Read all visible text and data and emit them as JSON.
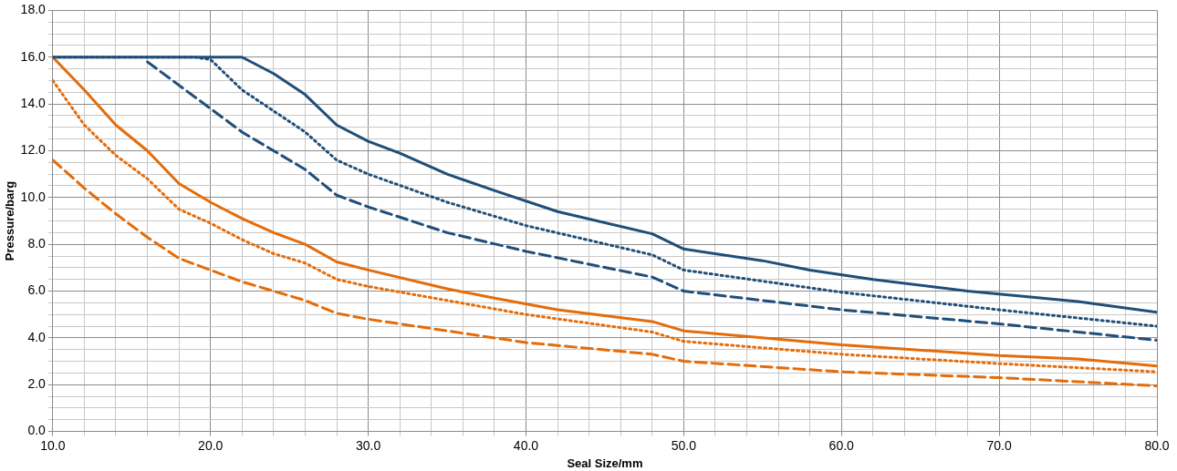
{
  "chart_data": {
    "type": "line",
    "xlabel": "Seal Size/mm",
    "ylabel": "Pressure/barg",
    "xlim": [
      10,
      80
    ],
    "ylim": [
      0,
      18
    ],
    "xticks": [
      {
        "value": 10,
        "label": "10.0"
      },
      {
        "value": 12,
        "label": null
      },
      {
        "value": 14,
        "label": null
      },
      {
        "value": 16,
        "label": null
      },
      {
        "value": 18,
        "label": null
      },
      {
        "value": 20,
        "label": "20.0"
      },
      {
        "value": 22,
        "label": null
      },
      {
        "value": 24,
        "label": null
      },
      {
        "value": 26,
        "label": null
      },
      {
        "value": 28,
        "label": null
      },
      {
        "value": 30,
        "label": "30.0"
      },
      {
        "value": 32,
        "label": null
      },
      {
        "value": 34,
        "label": null
      },
      {
        "value": 36,
        "label": null
      },
      {
        "value": 38,
        "label": null
      },
      {
        "value": 40,
        "label": "40.0"
      },
      {
        "value": 42,
        "label": null
      },
      {
        "value": 44,
        "label": null
      },
      {
        "value": 46,
        "label": null
      },
      {
        "value": 48,
        "label": null
      },
      {
        "value": 50,
        "label": "50.0"
      },
      {
        "value": 52,
        "label": null
      },
      {
        "value": 54,
        "label": null
      },
      {
        "value": 56,
        "label": null
      },
      {
        "value": 58,
        "label": null
      },
      {
        "value": 60,
        "label": "60.0"
      },
      {
        "value": 62,
        "label": null
      },
      {
        "value": 64,
        "label": null
      },
      {
        "value": 66,
        "label": null
      },
      {
        "value": 68,
        "label": null
      },
      {
        "value": 70,
        "label": "70.0"
      },
      {
        "value": 72,
        "label": null
      },
      {
        "value": 74,
        "label": null
      },
      {
        "value": 76,
        "label": null
      },
      {
        "value": 78,
        "label": null
      },
      {
        "value": 80,
        "label": "80.0"
      }
    ],
    "yticks": [
      {
        "value": 0,
        "label": "0.0"
      },
      {
        "value": 0.5,
        "label": null
      },
      {
        "value": 1,
        "label": null
      },
      {
        "value": 1.5,
        "label": null
      },
      {
        "value": 2,
        "label": "2.0"
      },
      {
        "value": 2.5,
        "label": null
      },
      {
        "value": 3,
        "label": null
      },
      {
        "value": 3.5,
        "label": null
      },
      {
        "value": 4,
        "label": "4.0"
      },
      {
        "value": 4.5,
        "label": null
      },
      {
        "value": 5,
        "label": null
      },
      {
        "value": 5.5,
        "label": null
      },
      {
        "value": 6,
        "label": "6.0"
      },
      {
        "value": 6.5,
        "label": null
      },
      {
        "value": 7,
        "label": null
      },
      {
        "value": 7.5,
        "label": null
      },
      {
        "value": 8,
        "label": "8.0"
      },
      {
        "value": 8.5,
        "label": null
      },
      {
        "value": 9,
        "label": null
      },
      {
        "value": 9.5,
        "label": null
      },
      {
        "value": 10,
        "label": "10.0"
      },
      {
        "value": 10.5,
        "label": null
      },
      {
        "value": 11,
        "label": null
      },
      {
        "value": 11.5,
        "label": null
      },
      {
        "value": 12,
        "label": "12.0"
      },
      {
        "value": 12.5,
        "label": null
      },
      {
        "value": 13,
        "label": null
      },
      {
        "value": 13.5,
        "label": null
      },
      {
        "value": 14,
        "label": "14.0"
      },
      {
        "value": 14.5,
        "label": null
      },
      {
        "value": 15,
        "label": null
      },
      {
        "value": 15.5,
        "label": null
      },
      {
        "value": 16,
        "label": "16.0"
      },
      {
        "value": 16.5,
        "label": null
      },
      {
        "value": 17,
        "label": null
      },
      {
        "value": 17.5,
        "label": null
      },
      {
        "value": 18,
        "label": "18.0"
      }
    ],
    "grid": true,
    "marker": "none",
    "series": [
      {
        "color": "#1f4e79",
        "line_style": "solid",
        "x": [
          10,
          22,
          24,
          26,
          28,
          30,
          32,
          35,
          38,
          42,
          48,
          50,
          55,
          58,
          62,
          68,
          75,
          80
        ],
        "values": [
          16,
          16,
          15.3,
          14.4,
          13.1,
          12.4,
          11.9,
          11.0,
          10.3,
          9.4,
          8.45,
          7.8,
          7.3,
          6.9,
          6.5,
          6.0,
          5.55,
          5.1
        ]
      },
      {
        "color": "#1f4e79",
        "line_style": "dotted",
        "x": [
          10,
          19,
          20,
          22,
          26,
          28,
          30,
          35,
          40,
          48,
          50,
          60,
          70,
          80
        ],
        "values": [
          16,
          16,
          15.9,
          14.6,
          12.8,
          11.6,
          11.0,
          9.8,
          8.8,
          7.55,
          6.9,
          5.95,
          5.2,
          4.5
        ]
      },
      {
        "color": "#1f4e79",
        "line_style": "dashed",
        "x": [
          16,
          20,
          22,
          26,
          28,
          30,
          35,
          40,
          48,
          50,
          60,
          70,
          80
        ],
        "values": [
          15.8,
          13.8,
          12.8,
          11.2,
          10.1,
          9.6,
          8.5,
          7.7,
          6.6,
          6.0,
          5.2,
          4.6,
          3.9
        ]
      },
      {
        "color": "#e46c0a",
        "line_style": "solid",
        "x": [
          10,
          12,
          14,
          16,
          18,
          20,
          22,
          24,
          26,
          28,
          30,
          35,
          38,
          42,
          48,
          50,
          60,
          70,
          75,
          80
        ],
        "values": [
          16,
          14.6,
          13.1,
          12.0,
          10.6,
          9.8,
          9.1,
          8.5,
          8.0,
          7.25,
          6.9,
          6.1,
          5.7,
          5.2,
          4.7,
          4.3,
          3.7,
          3.25,
          3.1,
          2.8
        ]
      },
      {
        "color": "#e46c0a",
        "line_style": "dotted",
        "x": [
          10,
          12,
          14,
          16,
          18,
          20,
          22,
          24,
          26,
          28,
          30,
          35,
          40,
          48,
          50,
          60,
          70,
          80
        ],
        "values": [
          15.0,
          13.1,
          11.8,
          10.8,
          9.5,
          8.9,
          8.2,
          7.6,
          7.2,
          6.5,
          6.2,
          5.6,
          5.0,
          4.25,
          3.85,
          3.3,
          2.9,
          2.55
        ]
      },
      {
        "color": "#e46c0a",
        "line_style": "dashed",
        "x": [
          10,
          12,
          14,
          16,
          18,
          20,
          22,
          24,
          26,
          28,
          30,
          35,
          40,
          48,
          50,
          60,
          70,
          80
        ],
        "values": [
          11.6,
          10.4,
          9.3,
          8.3,
          7.4,
          6.9,
          6.4,
          6.0,
          5.6,
          5.05,
          4.8,
          4.3,
          3.8,
          3.3,
          3.0,
          2.55,
          2.3,
          1.95
        ]
      }
    ]
  }
}
